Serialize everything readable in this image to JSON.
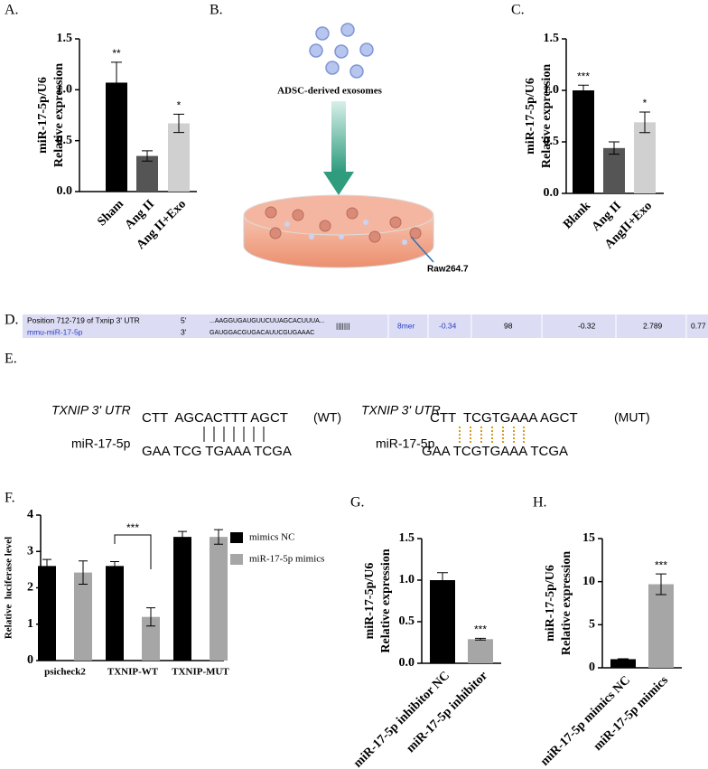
{
  "panel_labels": [
    "A.",
    "B.",
    "C.",
    "D.",
    "E.",
    "F.",
    "G.",
    "H."
  ],
  "chart_data": [
    {
      "type": "bar",
      "ylabel": [
        "miR-17-5p/U6",
        "Relative expression"
      ],
      "categories": [
        "Sham",
        "Ang II",
        "Ang II+Exo"
      ],
      "values": [
        1.07,
        0.35,
        0.67
      ],
      "errors": [
        0.2,
        0.05,
        0.09
      ],
      "colors": [
        "#000000",
        "#555555",
        "#d0d0d0"
      ],
      "significance": [
        "**",
        null,
        "*"
      ],
      "ylim": [
        0,
        1.5
      ],
      "yticks": [
        {
          "value": 0,
          "label": "0.0"
        },
        0.5,
        {
          "value": 1,
          "label": "1.0"
        },
        1.5
      ]
    },
    {
      "type": "bar",
      "ylabel": [
        "miR-17-5p/U6",
        "Relative expression"
      ],
      "categories": [
        "Blank",
        "Ang II",
        "AngII+Exo"
      ],
      "values": [
        1.0,
        0.44,
        0.69
      ],
      "errors": [
        0.05,
        0.06,
        0.1
      ],
      "colors": [
        "#000000",
        "#555555",
        "#d0d0d0"
      ],
      "significance": [
        "***",
        null,
        "*"
      ],
      "ylim": [
        0,
        1.5
      ],
      "yticks": [
        {
          "value": 0,
          "label": "0.0"
        },
        0.5,
        {
          "value": 1,
          "label": "1.0"
        },
        1.5
      ]
    },
    {
      "type": "grouped_bar",
      "ylabel": "Relative  luciferase level",
      "categories": [
        "psicheck2",
        "TXNIP-WT",
        "TXNIP-MUT"
      ],
      "series": [
        {
          "name": "mimics NC",
          "color": "#000000",
          "values": [
            2.6,
            2.6,
            3.4
          ],
          "errors": [
            0.18,
            0.12,
            0.15
          ]
        },
        {
          "name": "miR-17-5p mimics",
          "color": "#a6a6a6",
          "values": [
            2.42,
            1.2,
            3.4
          ],
          "errors": [
            0.32,
            0.25,
            0.2
          ]
        }
      ],
      "annotation": "***",
      "ylim": [
        0,
        4
      ],
      "yticks": [
        0,
        1,
        2,
        3,
        4
      ]
    },
    {
      "type": "bar",
      "ylabel": [
        "miR-17-5p/U6",
        "Relative expression"
      ],
      "categories": [
        "miR-17-5p inhibitor NC",
        "miR-17-5p inhibitor"
      ],
      "values": [
        1.0,
        0.29
      ],
      "errors": [
        0.09,
        0.01
      ],
      "colors": [
        "#000000",
        "#a6a6a6"
      ],
      "significance": [
        null,
        "***"
      ],
      "ylim": [
        0,
        1.5
      ],
      "yticks": [
        {
          "value": 0,
          "label": "0.0"
        },
        0.5,
        {
          "value": 1,
          "label": "1.0"
        },
        1.5
      ]
    },
    {
      "type": "bar",
      "ylabel": [
        "miR-17-5p/U6",
        "Relative expression"
      ],
      "categories": [
        "miR-17-5p mimics NC",
        "miR-17-5p mimics"
      ],
      "values": [
        1.0,
        9.7
      ],
      "errors": [
        0.05,
        1.2
      ],
      "colors": [
        "#000000",
        "#a6a6a6"
      ],
      "significance": [
        null,
        "***"
      ],
      "ylim": [
        0,
        15
      ],
      "yticks": [
        0,
        5,
        10,
        15
      ]
    }
  ],
  "diagram": {
    "exosomes": "ADSC-derived exosomes",
    "cells": "Raw264.7"
  },
  "table": {
    "rows": [
      [
        "Position 712-719 of Txnip 3' UTR",
        "5'",
        "...AAGGUGAUGUUCUUAGCACUUUA...",
        "|||||||",
        "8mer",
        "-0.34",
        "98",
        "-0.32",
        "2.789",
        "0.77"
      ],
      [
        "mmu-miR-17-5p",
        "3'",
        "GAUGGACGUGACAUUCGUGAAAC"
      ]
    ]
  },
  "sequences": [
    {
      "gene": "TXNIP 3' UTR",
      "utr": "CTT  AGCACTTT AGCT",
      "tag": "(WT)",
      "mirna": "miR-17-5p",
      "seed": "GAA TCG TGAAA TCGA"
    },
    {
      "gene": "TXNIP 3' UTR",
      "utr": "CTT  TCGTGAAA AGCT",
      "tag": "(MUT)",
      "mirna": "miR-17-5p",
      "seed": "GAA TCGTGAAA TCGA"
    }
  ]
}
